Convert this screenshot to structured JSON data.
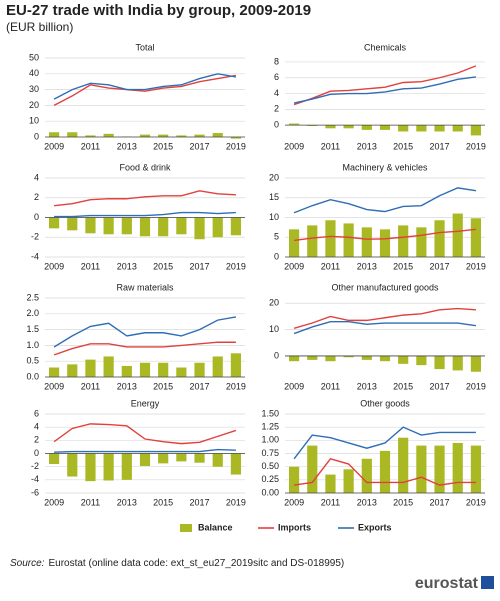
{
  "title": "EU-27 trade with India by group, 2009-2019",
  "subtitle": "(EUR billion)",
  "legend": [
    {
      "name": "Balance",
      "color": "#a9b823"
    },
    {
      "name": "Imports",
      "color": "#e2403c"
    },
    {
      "name": "Exports",
      "color": "#2f6db5"
    }
  ],
  "chart_data": [
    {
      "type": "combo",
      "title": "Total",
      "categories": [
        "2009",
        null,
        "2011",
        null,
        "2013",
        null,
        "2015",
        null,
        "2017",
        null,
        "2019"
      ],
      "ylim": [
        0,
        50
      ],
      "yticks": [
        0,
        10,
        20,
        30,
        40,
        50
      ],
      "series": [
        {
          "type": "bar",
          "values": [
            3,
            3,
            1,
            2,
            0.3,
            1.5,
            1.5,
            1,
            1.5,
            2.5,
            -1
          ]
        },
        {
          "type": "line",
          "values": [
            20,
            26,
            33,
            31,
            30,
            29,
            31,
            32,
            35,
            37,
            39
          ]
        },
        {
          "type": "line",
          "values": [
            24,
            30,
            34,
            33,
            30,
            30,
            32,
            33,
            37,
            40,
            38
          ]
        }
      ]
    },
    {
      "type": "combo",
      "title": "Chemicals",
      "categories": [
        "2009",
        null,
        "2011",
        null,
        "2013",
        null,
        "2015",
        null,
        "2017",
        null,
        "2019"
      ],
      "ylim": [
        -1.5,
        8.5
      ],
      "yticks": [
        0,
        2,
        4,
        6,
        8
      ],
      "series": [
        {
          "type": "bar",
          "values": [
            0.2,
            -0.1,
            -0.4,
            -0.4,
            -0.6,
            -0.6,
            -0.8,
            -0.8,
            -0.8,
            -0.8,
            -1.3
          ]
        },
        {
          "type": "line",
          "values": [
            2.6,
            3.4,
            4.3,
            4.4,
            4.6,
            4.8,
            5.4,
            5.5,
            6.0,
            6.6,
            7.5
          ]
        },
        {
          "type": "line",
          "values": [
            2.8,
            3.3,
            3.9,
            4.0,
            4.0,
            4.2,
            4.6,
            4.7,
            5.2,
            5.8,
            6.1
          ]
        }
      ]
    },
    {
      "type": "combo",
      "title": "Food & drink",
      "categories": [
        "2009",
        null,
        "2011",
        null,
        "2013",
        null,
        "2015",
        null,
        "2017",
        null,
        "2019"
      ],
      "ylim": [
        -4,
        4
      ],
      "yticks": [
        -4,
        -2,
        0,
        2,
        4
      ],
      "series": [
        {
          "type": "bar",
          "values": [
            -1.1,
            -1.3,
            -1.6,
            -1.7,
            -1.7,
            -1.9,
            -1.9,
            -1.7,
            -2.2,
            -2.0,
            -1.8
          ]
        },
        {
          "type": "line",
          "values": [
            1.2,
            1.4,
            1.8,
            1.9,
            1.9,
            2.1,
            2.2,
            2.2,
            2.7,
            2.4,
            2.3
          ]
        },
        {
          "type": "line",
          "values": [
            0.1,
            0.1,
            0.2,
            0.2,
            0.2,
            0.2,
            0.3,
            0.5,
            0.5,
            0.4,
            0.5
          ]
        }
      ]
    },
    {
      "type": "combo",
      "title": "Machinery & vehicles",
      "categories": [
        "2009",
        null,
        "2011",
        null,
        "2013",
        null,
        "2015",
        null,
        "2017",
        null,
        "2019"
      ],
      "ylim": [
        0,
        20
      ],
      "yticks": [
        0,
        5,
        10,
        15,
        20
      ],
      "series": [
        {
          "type": "bar",
          "values": [
            7,
            8,
            9.3,
            8.5,
            7.5,
            7,
            8,
            7.5,
            9.3,
            11,
            9.8
          ]
        },
        {
          "type": "line",
          "values": [
            4.2,
            4.8,
            5.2,
            5.0,
            4.5,
            4.6,
            5.0,
            5.5,
            6.2,
            6.5,
            7.0
          ]
        },
        {
          "type": "line",
          "values": [
            11.2,
            13,
            14.5,
            13.5,
            12,
            11.5,
            12.8,
            13,
            15.5,
            17.5,
            16.8
          ]
        }
      ]
    },
    {
      "type": "combo",
      "title": "Raw materials",
      "categories": [
        "2009",
        null,
        "2011",
        null,
        "2013",
        null,
        "2015",
        null,
        "2017",
        null,
        "2019"
      ],
      "ylim": [
        0,
        2.5
      ],
      "yticks": [
        {
          "value": 0,
          "label": "0.0"
        },
        0.5,
        {
          "value": 1,
          "label": "1.0"
        },
        1.5,
        {
          "value": 2,
          "label": "2.0"
        },
        2.5
      ],
      "series": [
        {
          "type": "bar",
          "values": [
            0.3,
            0.4,
            0.55,
            0.65,
            0.35,
            0.45,
            0.45,
            0.3,
            0.45,
            0.65,
            0.75
          ]
        },
        {
          "type": "line",
          "values": [
            0.7,
            0.9,
            1.05,
            1.05,
            0.95,
            0.95,
            0.95,
            1.0,
            1.05,
            1.1,
            1.1
          ]
        },
        {
          "type": "line",
          "values": [
            0.95,
            1.3,
            1.6,
            1.7,
            1.3,
            1.4,
            1.4,
            1.3,
            1.5,
            1.8,
            1.9
          ]
        }
      ]
    },
    {
      "type": "combo",
      "title": "Other manufactured goods",
      "categories": [
        "2009",
        null,
        "2011",
        null,
        "2013",
        null,
        "2015",
        null,
        "2017",
        null,
        "2019"
      ],
      "ylim": [
        -8,
        22
      ],
      "yticks": [
        0,
        10,
        20
      ],
      "series": [
        {
          "type": "bar",
          "values": [
            -2,
            -1.5,
            -2,
            -0.5,
            -1.5,
            -2,
            -3,
            -3.5,
            -5,
            -5.5,
            -6
          ]
        },
        {
          "type": "line",
          "values": [
            10.5,
            12.5,
            15,
            13.5,
            13.5,
            14.5,
            15.5,
            16,
            17.5,
            18,
            17.5
          ]
        },
        {
          "type": "line",
          "values": [
            8.5,
            11,
            13,
            13,
            12,
            12.5,
            12.5,
            12.5,
            12.5,
            12.5,
            11.5
          ]
        }
      ]
    },
    {
      "type": "combo",
      "title": "Energy",
      "categories": [
        "2009",
        null,
        "2011",
        null,
        "2013",
        null,
        "2015",
        null,
        "2017",
        null,
        "2019"
      ],
      "ylim": [
        -6,
        6
      ],
      "yticks": [
        -6,
        -4,
        -2,
        0,
        2,
        4,
        6
      ],
      "series": [
        {
          "type": "bar",
          "values": [
            -1.6,
            -3.5,
            -4.2,
            -4.1,
            -4,
            -1.9,
            -1.5,
            -1.2,
            -1.4,
            -2,
            -3.2
          ]
        },
        {
          "type": "line",
          "values": [
            1.8,
            3.8,
            4.5,
            4.4,
            4.2,
            2.2,
            1.8,
            1.5,
            1.7,
            2.6,
            3.5
          ]
        },
        {
          "type": "line",
          "values": [
            0.2,
            0.3,
            0.3,
            0.3,
            0.3,
            0.3,
            0.3,
            0.3,
            0.3,
            0.6,
            0.5
          ]
        }
      ]
    },
    {
      "type": "combo",
      "title": "Other goods",
      "categories": [
        "2009",
        null,
        "2011",
        null,
        "2013",
        null,
        "2015",
        null,
        "2017",
        null,
        "2019"
      ],
      "ylim": [
        0,
        1.5
      ],
      "yticks": [
        {
          "value": 0,
          "label": "0.00"
        },
        0.25,
        {
          "value": 0.5,
          "label": "0.50"
        },
        0.75,
        {
          "value": 1,
          "label": "1.00"
        },
        1.25,
        {
          "value": 1.5,
          "label": "1.50"
        }
      ],
      "series": [
        {
          "type": "bar",
          "values": [
            0.5,
            0.9,
            0.35,
            0.45,
            0.65,
            0.8,
            1.05,
            0.9,
            0.9,
            0.95,
            0.9
          ]
        },
        {
          "type": "line",
          "values": [
            0.15,
            0.2,
            0.65,
            0.55,
            0.2,
            0.2,
            0.2,
            0.3,
            0.15,
            0.2,
            0.2
          ]
        },
        {
          "type": "line",
          "values": [
            0.65,
            1.1,
            1.05,
            0.95,
            0.85,
            0.95,
            1.25,
            1.1,
            1.15,
            1.15,
            1.15
          ]
        }
      ]
    }
  ],
  "source_label": "Source:",
  "source": "Eurostat (online data code: ext_st_eu27_2019sitc and DS-018995)",
  "logo": "eurostat"
}
